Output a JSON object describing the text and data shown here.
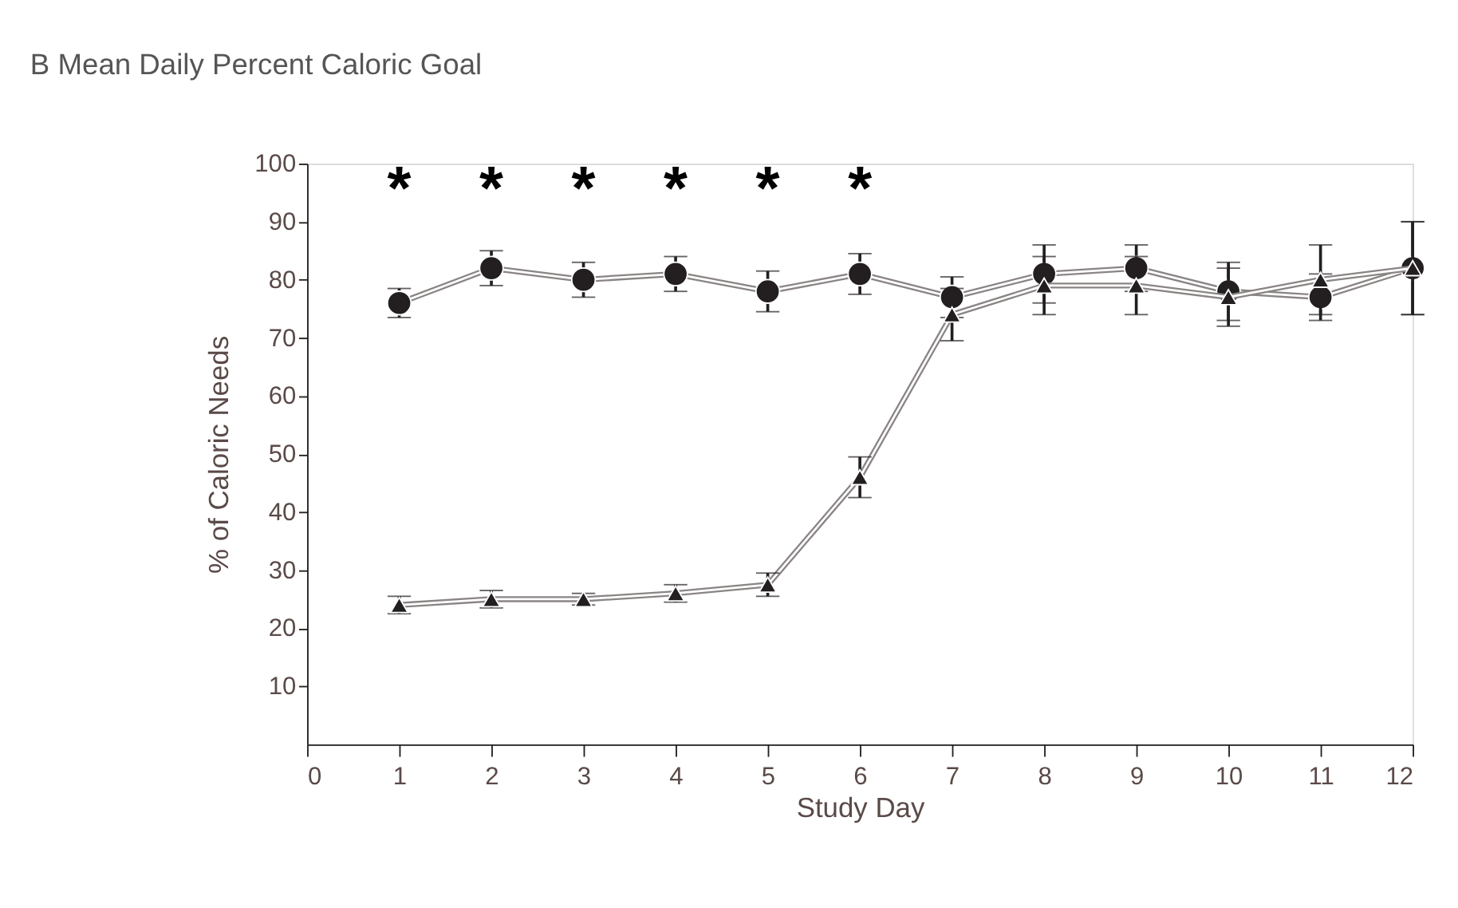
{
  "chart_data": {
    "type": "line",
    "title": "Mean Daily Percent Caloric Goal",
    "xlabel": "Study Day",
    "ylabel": "% of Caloric Needs",
    "x": [
      1,
      2,
      3,
      4,
      5,
      6,
      7,
      8,
      9,
      10,
      11,
      12
    ],
    "series": [
      {
        "color": "#231f20",
        "marker": "circle",
        "values": [
          76,
          82,
          80,
          81,
          78,
          81,
          77,
          81,
          82,
          78,
          77,
          82
        ],
        "errors": [
          2.5,
          3,
          3,
          3,
          3.5,
          3.5,
          3.5,
          5,
          4,
          5,
          4,
          8
        ]
      },
      {
        "color": "#231f20",
        "marker": "triangle",
        "values": [
          24,
          25,
          25,
          26,
          27.5,
          46,
          74,
          79,
          79,
          77,
          80,
          82
        ],
        "errors": [
          1.5,
          1.5,
          1,
          1.5,
          2,
          3.5,
          4.5,
          5,
          5,
          5,
          6,
          8
        ]
      }
    ],
    "annotations": [
      "B",
      "*",
      "*",
      "*",
      "*",
      "*",
      "*"
    ],
    "xlim": [
      0,
      12
    ],
    "xticks": [
      0,
      1,
      2,
      3,
      4,
      5,
      6,
      7,
      8,
      9,
      10,
      11,
      12
    ],
    "ylim": [
      0,
      100
    ],
    "yticks": [
      10,
      20,
      30,
      40,
      50,
      60,
      70,
      80,
      90,
      100
    ],
    "grid": false,
    "line_style": "solid"
  }
}
